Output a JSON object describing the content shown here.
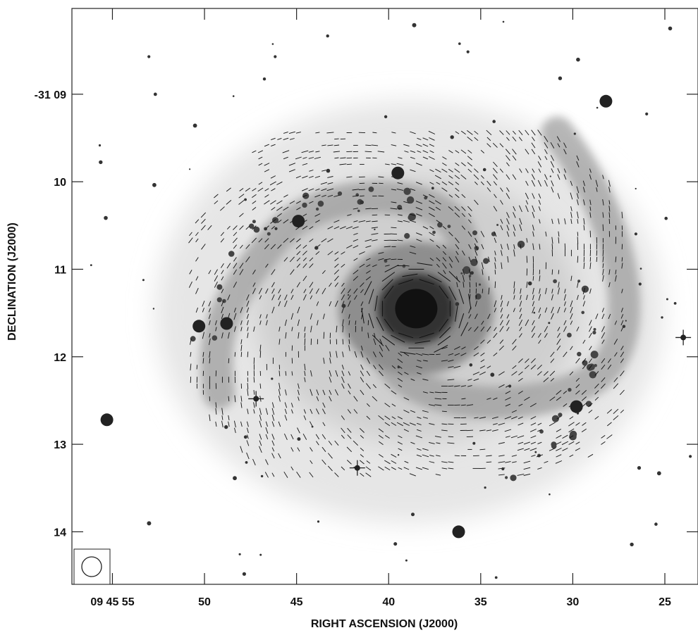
{
  "chart_data": {
    "type": "scatter",
    "description_kind": "radio polarization vectors over optical image",
    "xlabel": "RIGHT ASCENSION (J2000)",
    "ylabel": "DECLINATION (J2000)",
    "x_ticks": [
      {
        "value": 55,
        "label": "09 45 55"
      },
      {
        "value": 50,
        "label": "50"
      },
      {
        "value": 45,
        "label": "45"
      },
      {
        "value": 40,
        "label": "40"
      },
      {
        "value": 35,
        "label": "35"
      },
      {
        "value": 30,
        "label": "30"
      },
      {
        "value": 25,
        "label": "25"
      }
    ],
    "y_ticks": [
      {
        "value": 9,
        "label": "-31 09"
      },
      {
        "value": 10,
        "label": "10"
      },
      {
        "value": 11,
        "label": "11"
      },
      {
        "value": 12,
        "label": "12"
      },
      {
        "value": 13,
        "label": "13"
      },
      {
        "value": 14,
        "label": "14"
      }
    ],
    "xlim": [
      57.2,
      23.2
    ],
    "ylim": [
      8.02,
      14.6
    ],
    "galaxy_center": {
      "ra_sec": 38.5,
      "dec_arcmin": 11.45
    },
    "bright_stars": [
      {
        "ra_sec": 55.3,
        "dec_arcmin": 12.72
      },
      {
        "ra_sec": 50.3,
        "dec_arcmin": 11.65
      },
      {
        "ra_sec": 29.8,
        "dec_arcmin": 12.57
      },
      {
        "ra_sec": 28.2,
        "dec_arcmin": 9.08
      },
      {
        "ra_sec": 36.2,
        "dec_arcmin": 14.0
      },
      {
        "ra_sec": 48.8,
        "dec_arcmin": 11.62
      },
      {
        "ra_sec": 44.9,
        "dec_arcmin": 10.45
      },
      {
        "ra_sec": 39.5,
        "dec_arcmin": 9.9
      }
    ],
    "cross_stars": [
      {
        "ra_sec": 24.0,
        "dec_arcmin": 11.78
      },
      {
        "ra_sec": 41.7,
        "dec_arcmin": 13.27
      },
      {
        "ra_sec": 47.2,
        "dec_arcmin": 12.48
      }
    ],
    "grid": false,
    "beam": {
      "position": "bottom-left"
    },
    "colors": {
      "ink": "#111111",
      "frame": "#222222",
      "background": "#ffffff"
    }
  }
}
